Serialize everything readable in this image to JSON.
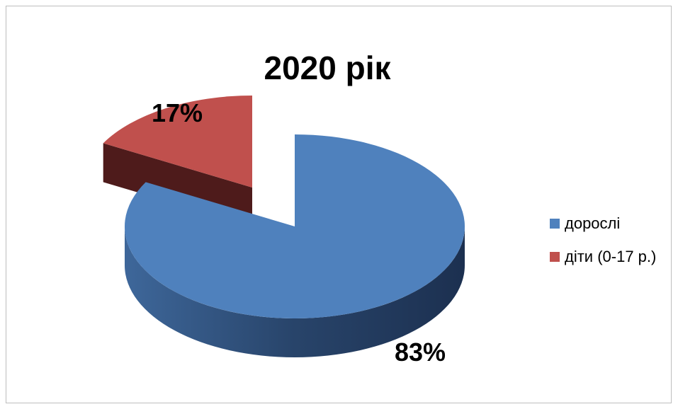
{
  "chart_data": {
    "type": "pie",
    "title": "2020 рік",
    "categories": [
      "дорослі",
      "діти (0-17 р.)"
    ],
    "values": [
      83,
      17
    ],
    "labels": [
      "83%",
      "17%"
    ],
    "legend_position": "right",
    "exploded_slice": "діти (0-17 р.)",
    "colors": [
      "#4F81BD",
      "#C0504D"
    ]
  }
}
